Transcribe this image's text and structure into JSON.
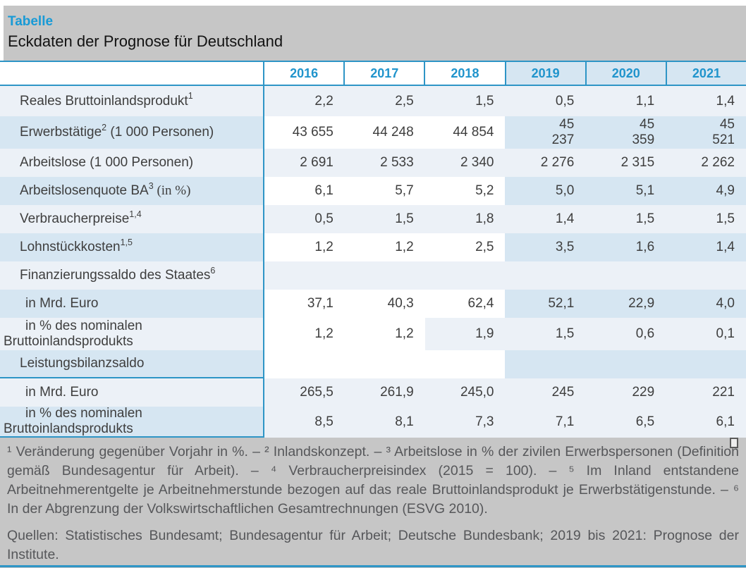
{
  "header": {
    "tag": "Tabelle",
    "title": "Eckdaten der Prognose für Deutschland"
  },
  "table": {
    "year_columns": [
      "2016",
      "2017",
      "2018",
      "2019",
      "2020",
      "2021"
    ],
    "forecast_years": "2019 bis 2021",
    "rows": [
      {
        "label": "Reales Bruttoinlandsprodukt",
        "sup": "1",
        "values": [
          "2,2",
          "2,5",
          "1,5",
          "0,5",
          "1,1",
          "1,4"
        ]
      },
      {
        "label": "Erwerbstätige",
        "sup": "2",
        "suffix": " (1 000 Personen)",
        "values": [
          "43 655",
          "44 248",
          "44 854",
          "45\n237",
          "45\n359",
          "45\n521"
        ]
      },
      {
        "label": "Arbeitslose (1 000 Personen)",
        "values": [
          "2 691",
          "2 533",
          "2 340",
          "2 276",
          "2 315",
          "2 262"
        ]
      },
      {
        "label": "Arbeitslosenquote BA",
        "sup": "3",
        "suffix": " (in %)",
        "values": [
          "6,1",
          "5,7",
          "5,2",
          "5,0",
          "5,1",
          "4,9"
        ]
      },
      {
        "label": "Verbraucherpreise",
        "sup": "1,4",
        "values": [
          "0,5",
          "1,5",
          "1,8",
          "1,4",
          "1,5",
          "1,5"
        ]
      },
      {
        "label": "Lohnstückkosten",
        "sup": "1,5",
        "values": [
          "1,2",
          "1,2",
          "2,5",
          "3,5",
          "1,6",
          "1,4"
        ]
      },
      {
        "label": "Finanzierungssaldo des Staates",
        "sup": "6",
        "values": [
          "",
          "",
          "",
          "",
          "",
          ""
        ]
      },
      {
        "label": "in Mrd. Euro",
        "values": [
          "37,1",
          "40,3",
          "62,4",
          "52,1",
          "22,9",
          "4,0"
        ]
      },
      {
        "label": "in % des nominalen\nBruttoinlandsprodukts",
        "values": [
          "1,2",
          "1,2",
          "1,9",
          "1,5",
          "0,6",
          "0,1"
        ]
      },
      {
        "label": "Leistungsbilanzsaldo",
        "values": [
          "",
          "",
          "",
          "",
          "",
          ""
        ]
      },
      {
        "label": "in Mrd. Euro",
        "values": [
          "265,5",
          "261,9",
          "245,0",
          "245",
          "229",
          "221"
        ]
      },
      {
        "label": "in % des nominalen\nBruttoinlandsprodukts",
        "values": [
          "8,5",
          "8,1",
          "7,3",
          "7,1",
          "6,5",
          "6,1"
        ]
      }
    ]
  },
  "footnotes": {
    "note": "¹ Veränderung gegenüber Vorjahr in %. – ² Inlandskonzept. – ³ Arbeitslose in % der zivilen Erwerbspersonen (Definition gemäß Bundesagentur für Arbeit). – ⁴ Verbraucherpreisindex (2015 = 100). – ⁵ Im Inland entstan­dene Arbeitnehmerentgelte je Arbeitnehmerstunde bezogen auf das reale Bruttoinlandsprodukt je Erwerbs­tätigenstunde. – ⁶ In der Abgrenzung der Volkswirtschaftlichen Gesamtrechnungen (ESVG 2010).",
    "sources": "Quellen: Statistisches Bundesamt; Bundesagentur für Arbeit; Deutsche Bundesbank; 2019 bis 2021: Prognose der Institute."
  },
  "colors": {
    "accent_blue": "#189ad6",
    "line_blue": "#2e95c6",
    "year_text_blue": "#2094cc",
    "row_tint_light": "#ecf1f7",
    "row_tint_forecast": "#d6e6f2",
    "band_gray": "#c6c6c6",
    "text_dark": "#3e3e3e",
    "footnote_text": "#56575a"
  }
}
